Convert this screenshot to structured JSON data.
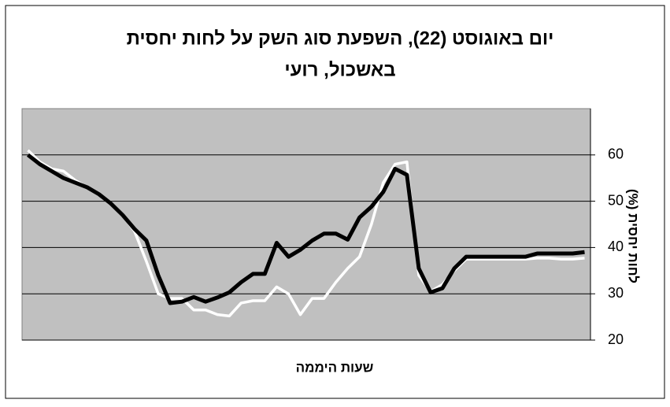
{
  "chart_data": {
    "type": "line",
    "title": [
      "יום באוגוסט (22), השפעת סוג השק על לחות יחסית",
      "באשכול, רועי"
    ],
    "x_label": "שעות היממה",
    "y_label": "לחות יחסית (%)",
    "ylim": [
      20,
      70
    ],
    "yticks": [
      20,
      30,
      40,
      50,
      60
    ],
    "grid": true,
    "series": [
      {
        "color": "#ffffff",
        "values": [
          61,
          58.5,
          57,
          56.5,
          54.5,
          53,
          51.5,
          49.5,
          47,
          43.5,
          37,
          30,
          29,
          29,
          26.5,
          26.5,
          25.5,
          25.2,
          28,
          28.5,
          28.5,
          31.5,
          30,
          25.5,
          29,
          29,
          32.5,
          35.5,
          38,
          45,
          54,
          58,
          58.5,
          34,
          30.5,
          32,
          35,
          37.5,
          37.5,
          37.5,
          37.5,
          37.5,
          37.5,
          37.7,
          37.7,
          37.5,
          37.5,
          37.7
        ]
      },
      {
        "color": "#000000",
        "values": [
          60,
          58,
          56.5,
          55,
          54,
          53,
          51.5,
          49.5,
          47,
          44,
          41.5,
          34,
          28,
          28.3,
          29.3,
          28.3,
          29.2,
          30.3,
          32.5,
          34.3,
          34.3,
          41,
          38,
          39.5,
          41.5,
          43,
          43,
          41.7,
          46.5,
          48.8,
          52,
          57,
          55.7,
          35.5,
          30.3,
          31.2,
          35.5,
          38,
          38,
          38,
          38,
          38,
          38,
          38.7,
          38.7,
          38.7,
          38.7,
          39
        ]
      }
    ]
  }
}
